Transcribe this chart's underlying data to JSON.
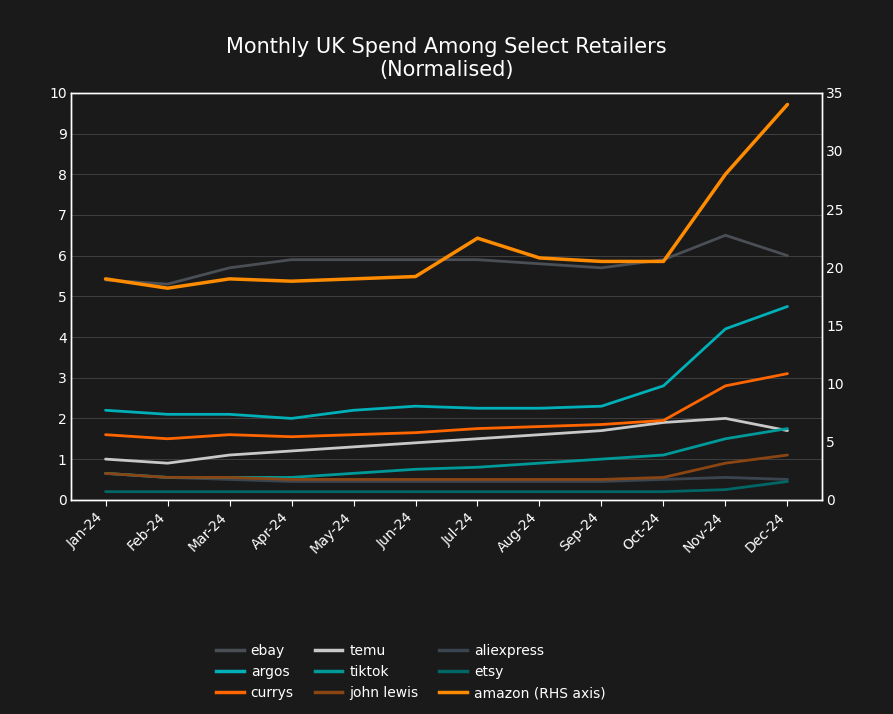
{
  "title": "Monthly UK Spend Among Select Retailers\n(Normalised)",
  "months": [
    "Jan-24",
    "Feb-24",
    "Mar-24",
    "Apr-24",
    "May-24",
    "Jun-24",
    "Jul-24",
    "Aug-24",
    "Sep-24",
    "Oct-24",
    "Nov-24",
    "Dec-24"
  ],
  "series_order": [
    "ebay",
    "temu",
    "aliexpress",
    "argos",
    "tiktok",
    "etsy",
    "currys",
    "john lewis",
    "amazon"
  ],
  "series": {
    "ebay": {
      "values": [
        5.4,
        5.3,
        5.7,
        5.9,
        5.9,
        5.9,
        5.9,
        5.8,
        5.7,
        5.9,
        6.5,
        6.0
      ],
      "color": "#4a4f55",
      "lw": 2.0,
      "rhs": false
    },
    "temu": {
      "values": [
        1.0,
        0.9,
        1.1,
        1.2,
        1.3,
        1.4,
        1.5,
        1.6,
        1.7,
        1.9,
        2.0,
        1.7
      ],
      "color": "#c8c8c8",
      "lw": 2.0,
      "rhs": false
    },
    "aliexpress": {
      "values": [
        0.65,
        0.55,
        0.5,
        0.45,
        0.45,
        0.45,
        0.45,
        0.45,
        0.45,
        0.5,
        0.55,
        0.5
      ],
      "color": "#3a4550",
      "lw": 2.0,
      "rhs": false
    },
    "argos": {
      "values": [
        2.2,
        2.1,
        2.1,
        2.0,
        2.2,
        2.3,
        2.25,
        2.25,
        2.3,
        2.8,
        4.2,
        4.75
      ],
      "color": "#00b0b9",
      "lw": 2.0,
      "rhs": false
    },
    "tiktok": {
      "values": [
        0.65,
        0.55,
        0.55,
        0.55,
        0.65,
        0.75,
        0.8,
        0.9,
        1.0,
        1.1,
        1.5,
        1.75
      ],
      "color": "#009999",
      "lw": 2.0,
      "rhs": false
    },
    "etsy": {
      "values": [
        0.2,
        0.2,
        0.2,
        0.2,
        0.2,
        0.2,
        0.2,
        0.2,
        0.2,
        0.2,
        0.25,
        0.45
      ],
      "color": "#006666",
      "lw": 2.0,
      "rhs": false
    },
    "currys": {
      "values": [
        1.6,
        1.5,
        1.6,
        1.55,
        1.6,
        1.65,
        1.75,
        1.8,
        1.85,
        1.95,
        2.8,
        3.1
      ],
      "color": "#ff6600",
      "lw": 2.0,
      "rhs": false
    },
    "john lewis": {
      "values": [
        0.65,
        0.55,
        0.55,
        0.5,
        0.5,
        0.5,
        0.5,
        0.5,
        0.5,
        0.55,
        0.9,
        1.1
      ],
      "color": "#8B4513",
      "lw": 2.0,
      "rhs": false
    },
    "amazon": {
      "values": [
        19.0,
        18.2,
        19.0,
        18.8,
        19.0,
        19.2,
        22.5,
        20.8,
        20.5,
        20.5,
        28.0,
        34.0
      ],
      "color": "#ff8c00",
      "lw": 2.5,
      "rhs": true
    }
  },
  "lhs_ylim": [
    0,
    10
  ],
  "rhs_ylim": [
    0,
    35
  ],
  "lhs_yticks": [
    0,
    1,
    2,
    3,
    4,
    5,
    6,
    7,
    8,
    9,
    10
  ],
  "rhs_yticks": [
    0,
    5,
    10,
    15,
    20,
    25,
    30,
    35
  ],
  "background_color": "#1a1a1a",
  "text_color": "#ffffff",
  "grid_color": "#404040",
  "border_color": "#ffffff",
  "legend_items": [
    {
      "label": "ebay",
      "color": "#4a4f55"
    },
    {
      "label": "argos",
      "color": "#00b0b9"
    },
    {
      "label": "currys",
      "color": "#ff6600"
    },
    {
      "label": "temu",
      "color": "#c8c8c8"
    },
    {
      "label": "tiktok",
      "color": "#009999"
    },
    {
      "label": "john lewis",
      "color": "#8B4513"
    },
    {
      "label": "aliexpress",
      "color": "#3a4550"
    },
    {
      "label": "etsy",
      "color": "#006666"
    },
    {
      "label": "amazon (RHS axis)",
      "color": "#ff8c00"
    }
  ],
  "title_fontsize": 15,
  "tick_fontsize": 10,
  "legend_fontsize": 10
}
